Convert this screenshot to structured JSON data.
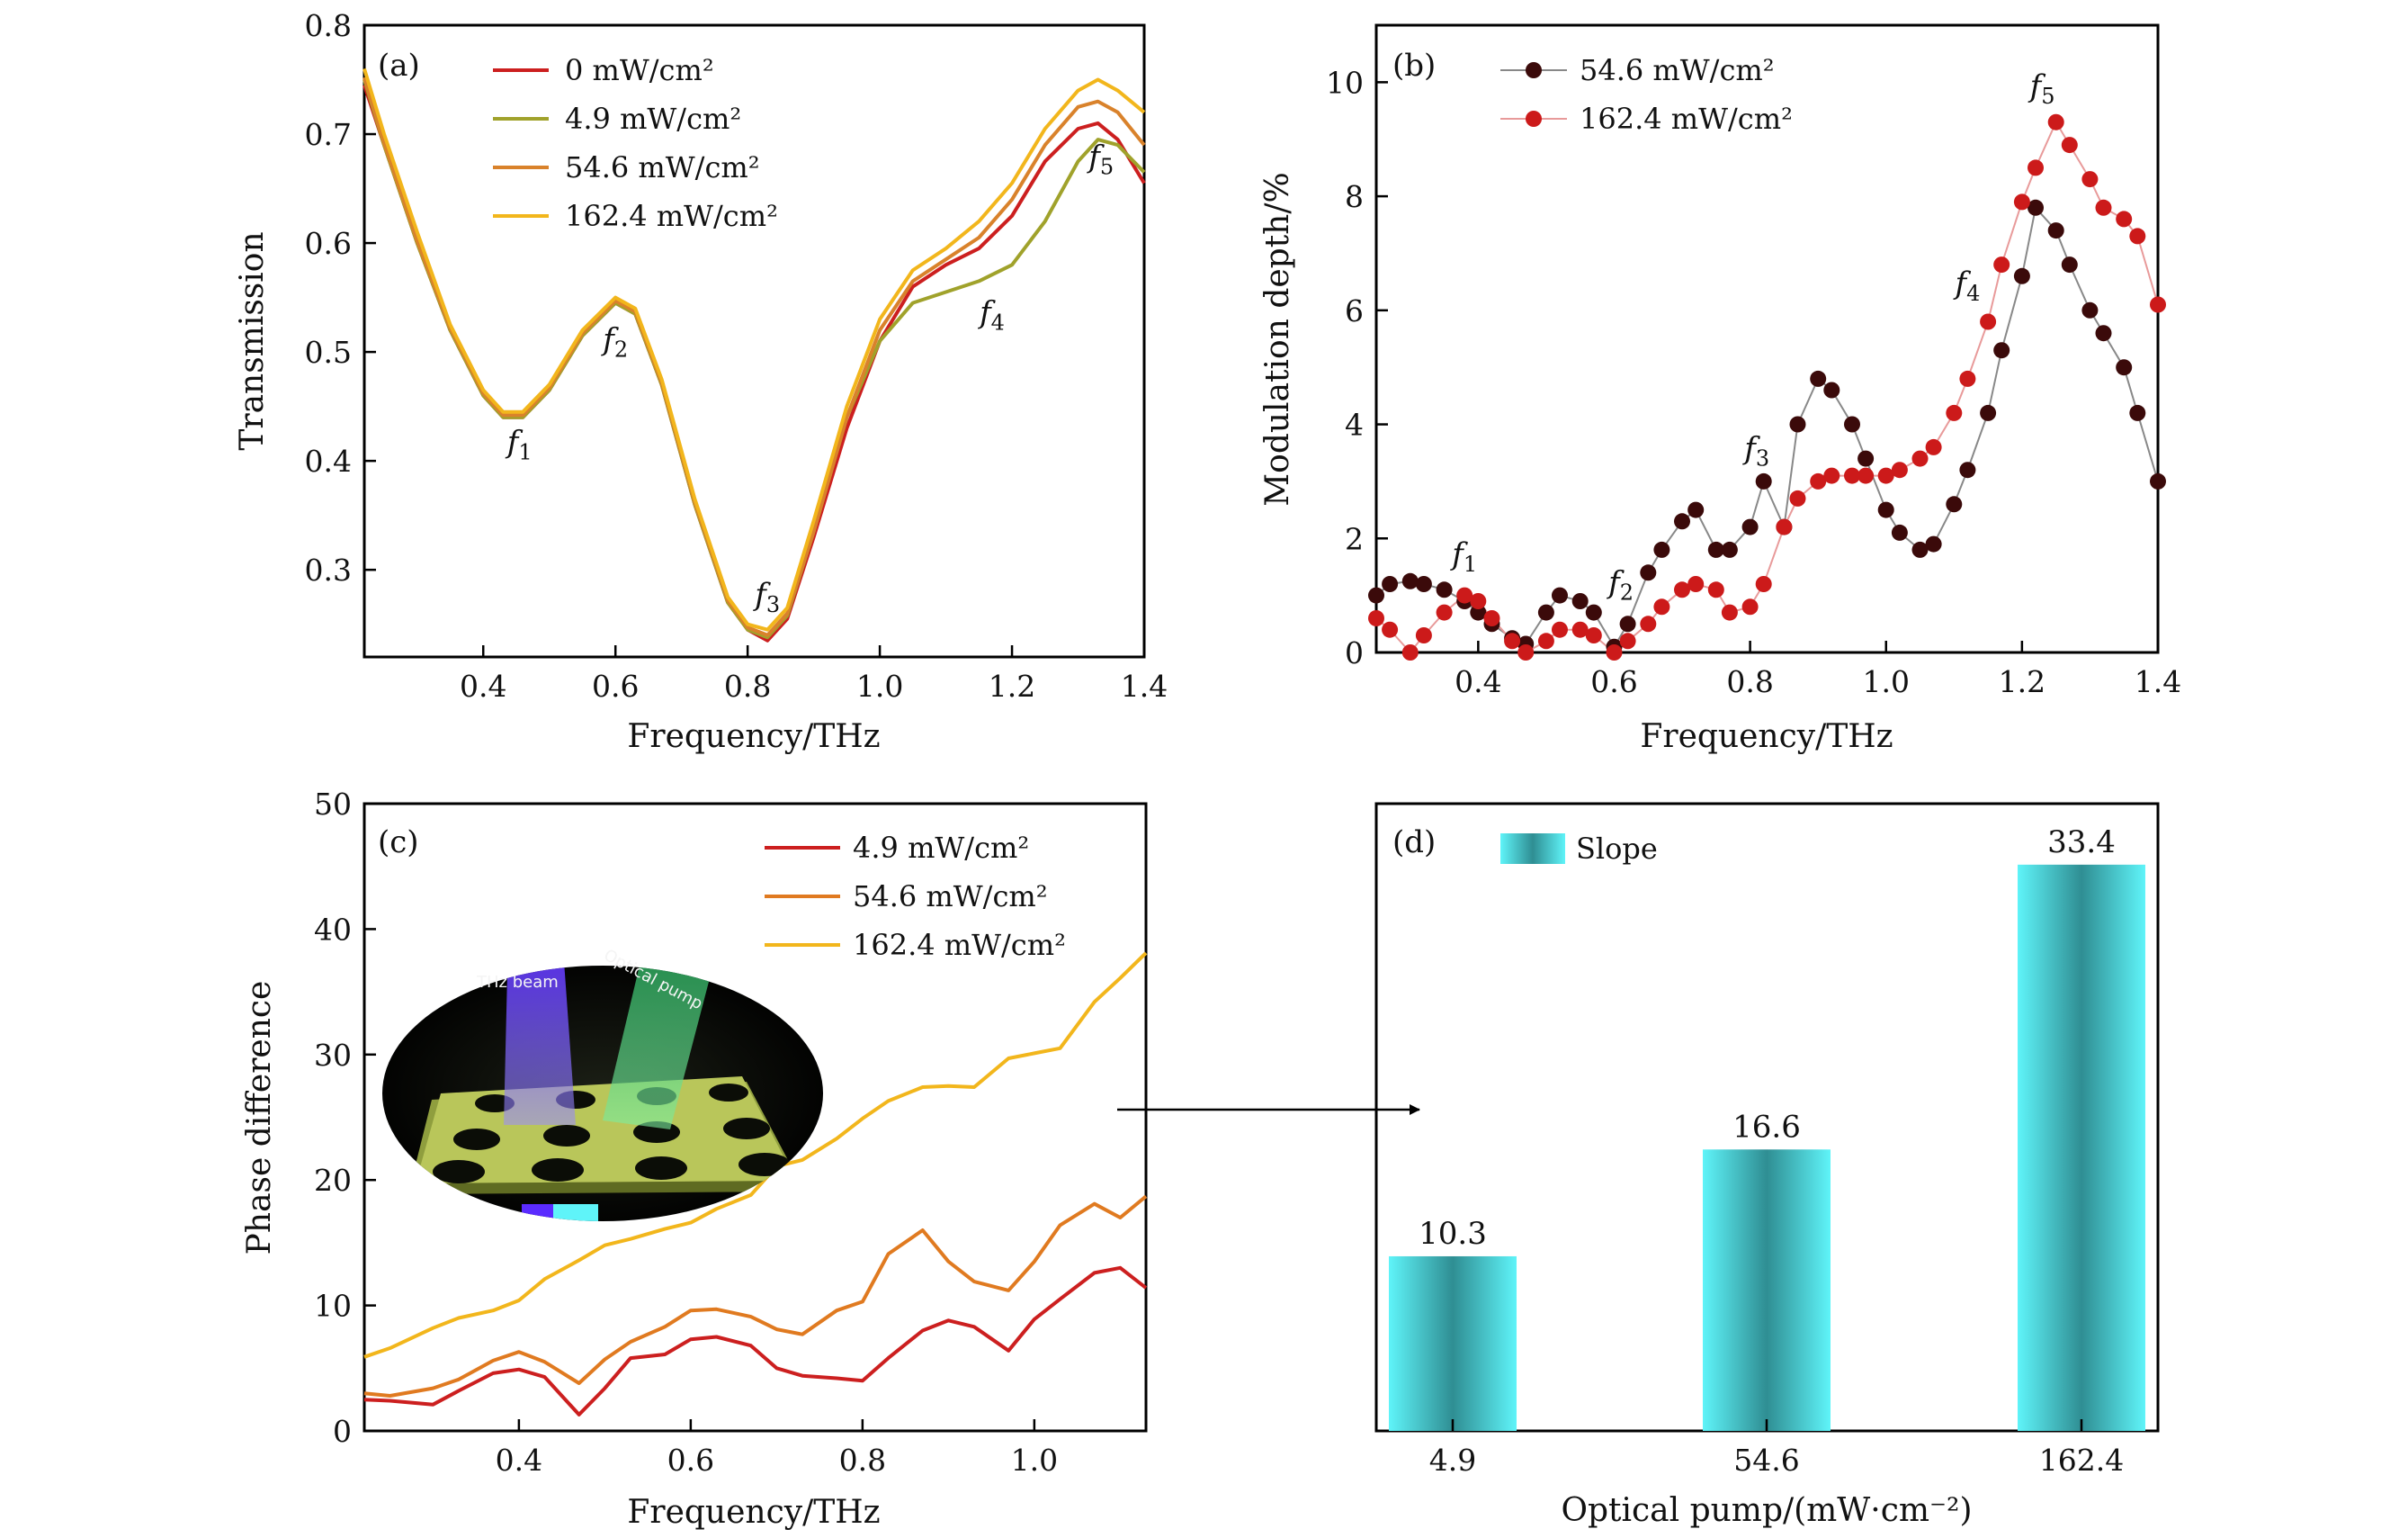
{
  "chart_data": [
    {
      "type": "line",
      "panel_label": "(a)",
      "xlabel": "Frequency/THz",
      "ylabel": "Transmission",
      "xlim": [
        0.22,
        1.4
      ],
      "ylim": [
        0.22,
        0.8
      ],
      "xticks": [
        "0.4",
        "0.6",
        "0.8",
        "1.0",
        "1.2",
        "1.4"
      ],
      "yticks": [
        "0.3",
        "0.4",
        "0.5",
        "0.6",
        "0.7",
        "0.8"
      ],
      "legend": "top-left",
      "x": [
        0.22,
        0.25,
        0.3,
        0.35,
        0.4,
        0.43,
        0.46,
        0.5,
        0.55,
        0.6,
        0.63,
        0.67,
        0.72,
        0.77,
        0.8,
        0.83,
        0.86,
        0.9,
        0.95,
        1.0,
        1.05,
        1.1,
        1.15,
        1.2,
        1.25,
        1.3,
        1.33,
        1.36,
        1.4
      ],
      "series": [
        {
          "name": "0 mW/cm²",
          "color": "#cc1f1f",
          "values": [
            0.745,
            0.69,
            0.6,
            0.52,
            0.46,
            0.44,
            0.44,
            0.465,
            0.515,
            0.545,
            0.535,
            0.47,
            0.36,
            0.27,
            0.245,
            0.235,
            0.255,
            0.33,
            0.43,
            0.51,
            0.56,
            0.58,
            0.595,
            0.625,
            0.675,
            0.705,
            0.71,
            0.695,
            0.655
          ]
        },
        {
          "name": "4.9 mW/cm²",
          "color": "#a0a22b",
          "values": [
            0.75,
            0.69,
            0.6,
            0.52,
            0.46,
            0.44,
            0.44,
            0.465,
            0.515,
            0.545,
            0.535,
            0.47,
            0.36,
            0.27,
            0.245,
            0.238,
            0.258,
            0.335,
            0.44,
            0.51,
            0.545,
            0.555,
            0.565,
            0.58,
            0.62,
            0.675,
            0.695,
            0.69,
            0.665
          ]
        },
        {
          "name": "54.6 mW/cm²",
          "color": "#d9822b",
          "values": [
            0.752,
            0.692,
            0.602,
            0.522,
            0.462,
            0.442,
            0.442,
            0.467,
            0.517,
            0.547,
            0.537,
            0.472,
            0.362,
            0.272,
            0.247,
            0.24,
            0.26,
            0.335,
            0.44,
            0.52,
            0.565,
            0.585,
            0.605,
            0.64,
            0.69,
            0.725,
            0.73,
            0.72,
            0.69
          ]
        },
        {
          "name": "162.4 mW/cm²",
          "color": "#f2b61c",
          "values": [
            0.76,
            0.7,
            0.61,
            0.525,
            0.465,
            0.445,
            0.445,
            0.47,
            0.52,
            0.55,
            0.54,
            0.475,
            0.365,
            0.275,
            0.25,
            0.245,
            0.265,
            0.345,
            0.45,
            0.53,
            0.575,
            0.595,
            0.62,
            0.655,
            0.705,
            0.74,
            0.75,
            0.74,
            0.72
          ]
        }
      ],
      "annotations": [
        {
          "text": "f",
          "sub": "1",
          "x": 0.455,
          "y": 0.408
        },
        {
          "text": "f",
          "sub": "2",
          "x": 0.6,
          "y": 0.502
        },
        {
          "text": "f",
          "sub": "3",
          "x": 0.83,
          "y": 0.268
        },
        {
          "text": "f",
          "sub": "4",
          "x": 1.17,
          "y": 0.527
        },
        {
          "text": "f",
          "sub": "5",
          "x": 1.335,
          "y": 0.67
        }
      ]
    },
    {
      "type": "line",
      "panel_label": "(b)",
      "xlabel": "Frequency/THz",
      "ylabel": "Modulation depth/%",
      "xlim": [
        0.25,
        1.4
      ],
      "ylim": [
        0,
        11
      ],
      "xticks": [
        "0.4",
        "0.6",
        "0.8",
        "1.0",
        "1.2",
        "1.4"
      ],
      "yticks": [
        "0",
        "2",
        "4",
        "6",
        "8",
        "10"
      ],
      "legend": "top-left",
      "x": [
        0.25,
        0.27,
        0.3,
        0.32,
        0.35,
        0.38,
        0.4,
        0.42,
        0.45,
        0.47,
        0.5,
        0.52,
        0.55,
        0.57,
        0.6,
        0.62,
        0.65,
        0.67,
        0.7,
        0.72,
        0.75,
        0.77,
        0.8,
        0.82,
        0.85,
        0.87,
        0.9,
        0.92,
        0.95,
        0.97,
        1.0,
        1.02,
        1.05,
        1.07,
        1.1,
        1.12,
        1.15,
        1.17,
        1.2,
        1.22,
        1.25,
        1.27,
        1.3,
        1.32,
        1.35,
        1.37,
        1.4
      ],
      "series": [
        {
          "name": "54.6 mW/cm²",
          "color": "#3b0a0a",
          "line_color": "#888888",
          "values": [
            1.0,
            1.2,
            1.25,
            1.2,
            1.1,
            0.9,
            0.7,
            0.5,
            0.25,
            0.15,
            0.7,
            1.0,
            0.9,
            0.7,
            0.1,
            0.5,
            1.4,
            1.8,
            2.3,
            2.5,
            1.8,
            1.8,
            2.2,
            3.0,
            2.2,
            4.0,
            4.8,
            4.6,
            4.0,
            3.4,
            2.5,
            2.1,
            1.8,
            1.9,
            2.6,
            3.2,
            4.2,
            5.3,
            6.6,
            7.8,
            7.4,
            6.8,
            6.0,
            5.6,
            5.0,
            4.2,
            3.0
          ]
        },
        {
          "name": "162.4 mW/cm²",
          "color": "#cc1a1a",
          "line_color": "#e89a9a",
          "values": [
            0.6,
            0.4,
            0.0,
            0.3,
            0.7,
            1.0,
            0.9,
            0.6,
            0.2,
            0.0,
            0.2,
            0.4,
            0.4,
            0.3,
            0.0,
            0.2,
            0.5,
            0.8,
            1.1,
            1.2,
            1.1,
            0.7,
            0.8,
            1.2,
            2.2,
            2.7,
            3.0,
            3.1,
            3.1,
            3.1,
            3.1,
            3.2,
            3.4,
            3.6,
            4.2,
            4.8,
            5.8,
            6.8,
            7.9,
            8.5,
            9.3,
            8.9,
            8.3,
            7.8,
            7.6,
            7.3,
            6.1
          ]
        }
      ],
      "annotations": [
        {
          "text": "f",
          "sub": "1",
          "x": 0.38,
          "y": 1.55
        },
        {
          "text": "f",
          "sub": "2",
          "x": 0.61,
          "y": 1.05
        },
        {
          "text": "f",
          "sub": "3",
          "x": 0.81,
          "y": 3.4
        },
        {
          "text": "f",
          "sub": "4",
          "x": 1.12,
          "y": 6.3
        },
        {
          "text": "f",
          "sub": "5",
          "x": 1.23,
          "y": 9.75
        }
      ]
    },
    {
      "type": "line",
      "panel_label": "(c)",
      "xlabel": "Frequency/THz",
      "ylabel": "Phase difference",
      "xlim": [
        0.22,
        1.13
      ],
      "ylim": [
        0,
        50
      ],
      "xticks": [
        "0.4",
        "0.6",
        "0.8",
        "1.0"
      ],
      "yticks": [
        "0",
        "10",
        "20",
        "30",
        "40",
        "50"
      ],
      "legend": "top-right",
      "inset_labels": [
        "THz beam",
        "Optical pump"
      ],
      "x": [
        0.22,
        0.25,
        0.3,
        0.33,
        0.37,
        0.4,
        0.43,
        0.47,
        0.5,
        0.53,
        0.57,
        0.6,
        0.63,
        0.67,
        0.7,
        0.73,
        0.77,
        0.8,
        0.83,
        0.87,
        0.9,
        0.93,
        0.97,
        1.0,
        1.03,
        1.07,
        1.1,
        1.13
      ],
      "series": [
        {
          "name": "4.9 mW/cm²",
          "color": "#cc1f1f",
          "values": [
            2.5,
            2.4,
            2.1,
            3.2,
            4.6,
            4.9,
            4.3,
            1.3,
            3.4,
            5.8,
            6.1,
            7.3,
            7.5,
            6.8,
            5.0,
            4.4,
            4.2,
            4.0,
            5.8,
            8.0,
            8.8,
            8.3,
            6.4,
            8.9,
            10.5,
            12.6,
            13.0,
            11.4
          ]
        },
        {
          "name": "54.6 mW/cm²",
          "color": "#e07a20",
          "values": [
            3.0,
            2.8,
            3.4,
            4.1,
            5.6,
            6.3,
            5.5,
            3.8,
            5.7,
            7.1,
            8.3,
            9.6,
            9.7,
            9.1,
            8.1,
            7.7,
            9.6,
            10.3,
            14.1,
            16.0,
            13.5,
            11.9,
            11.2,
            13.5,
            16.4,
            18.1,
            17.0,
            18.7
          ]
        },
        {
          "name": "162.4 mW/cm²",
          "color": "#f2b61c",
          "values": [
            5.9,
            6.6,
            8.2,
            9.0,
            9.6,
            10.4,
            12.1,
            13.6,
            14.8,
            15.3,
            16.1,
            16.6,
            17.7,
            18.8,
            21.1,
            21.6,
            23.3,
            24.9,
            26.3,
            27.4,
            27.5,
            27.4,
            29.7,
            30.1,
            30.5,
            34.2,
            36.1,
            38.1
          ]
        }
      ]
    },
    {
      "type": "bar",
      "panel_label": "(d)",
      "xlabel": "Optical pump/(mW·cm⁻²)",
      "legend": "top-left",
      "categories": [
        "4.9",
        "54.6",
        "162.4"
      ],
      "series": [
        {
          "name": "Slope",
          "values": [
            10.3,
            16.6,
            33.4
          ]
        }
      ],
      "data_labels": [
        "10.3",
        "16.6",
        "33.4"
      ],
      "ylim": [
        0,
        37
      ],
      "color_light": "#5ff4f9",
      "color_dark": "#2f8e93"
    }
  ]
}
